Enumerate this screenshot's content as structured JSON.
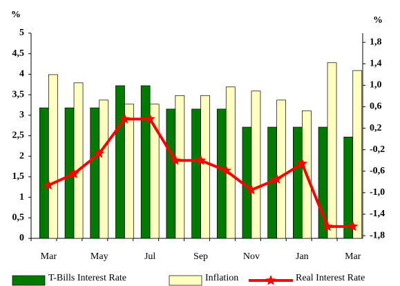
{
  "chart_data": {
    "type": "bar_line",
    "y_axis_label": "%",
    "y2_axis_label": "%",
    "categories": [
      "Mar",
      null,
      "May",
      null,
      "Jul",
      null,
      "Sep",
      null,
      "Nov",
      null,
      "Jan",
      null,
      "Mar"
    ],
    "series": [
      {
        "name": "T-Bills Interest Rate",
        "color": "#007a00",
        "values": [
          3.18,
          3.18,
          3.18,
          3.72,
          3.72,
          3.15,
          3.15,
          3.15,
          2.71,
          2.71,
          2.71,
          2.71,
          2.47
        ]
      },
      {
        "name": "Inflation",
        "color": "#ffffc0",
        "values": [
          3.99,
          3.79,
          3.37,
          3.27,
          3.27,
          3.48,
          3.48,
          3.69,
          3.59,
          3.37,
          3.11,
          4.28,
          4.09
        ]
      },
      {
        "name": "Real Interest Rate",
        "color": "#ff0000",
        "axis": "y2",
        "values": [
          -0.86,
          -0.65,
          -0.27,
          0.37,
          0.37,
          -0.4,
          -0.4,
          -0.59,
          -0.95,
          -0.75,
          -0.46,
          -1.63,
          -1.63
        ]
      }
    ],
    "ylim": [
      0,
      5
    ],
    "yticks": [
      0,
      {
        "value": 0.5,
        "label": "0,5"
      },
      1,
      {
        "value": 1.5,
        "label": "1,5"
      },
      2,
      {
        "value": 2.5,
        "label": "2,5"
      },
      3,
      {
        "value": 3.5,
        "label": "3,5"
      },
      4,
      {
        "value": 4.5,
        "label": "4,5"
      },
      5
    ],
    "y2lim": [
      -1.85,
      1.97
    ],
    "y2ticks": [
      {
        "value": -1.8,
        "label": "-1,8"
      },
      {
        "value": -1.4,
        "label": "-1,4"
      },
      {
        "value": -1.0,
        "label": "-1,0"
      },
      {
        "value": -0.6,
        "label": "-0,6"
      },
      {
        "value": -0.2,
        "label": "-0,2"
      },
      {
        "value": 0.2,
        "label": "0,2"
      },
      {
        "value": 0.6,
        "label": "0,6"
      },
      {
        "value": 1.0,
        "label": "1,0"
      },
      {
        "value": 1.4,
        "label": "1,4"
      },
      {
        "value": 1.8,
        "label": "1,8"
      }
    ],
    "legend": "bottom"
  }
}
